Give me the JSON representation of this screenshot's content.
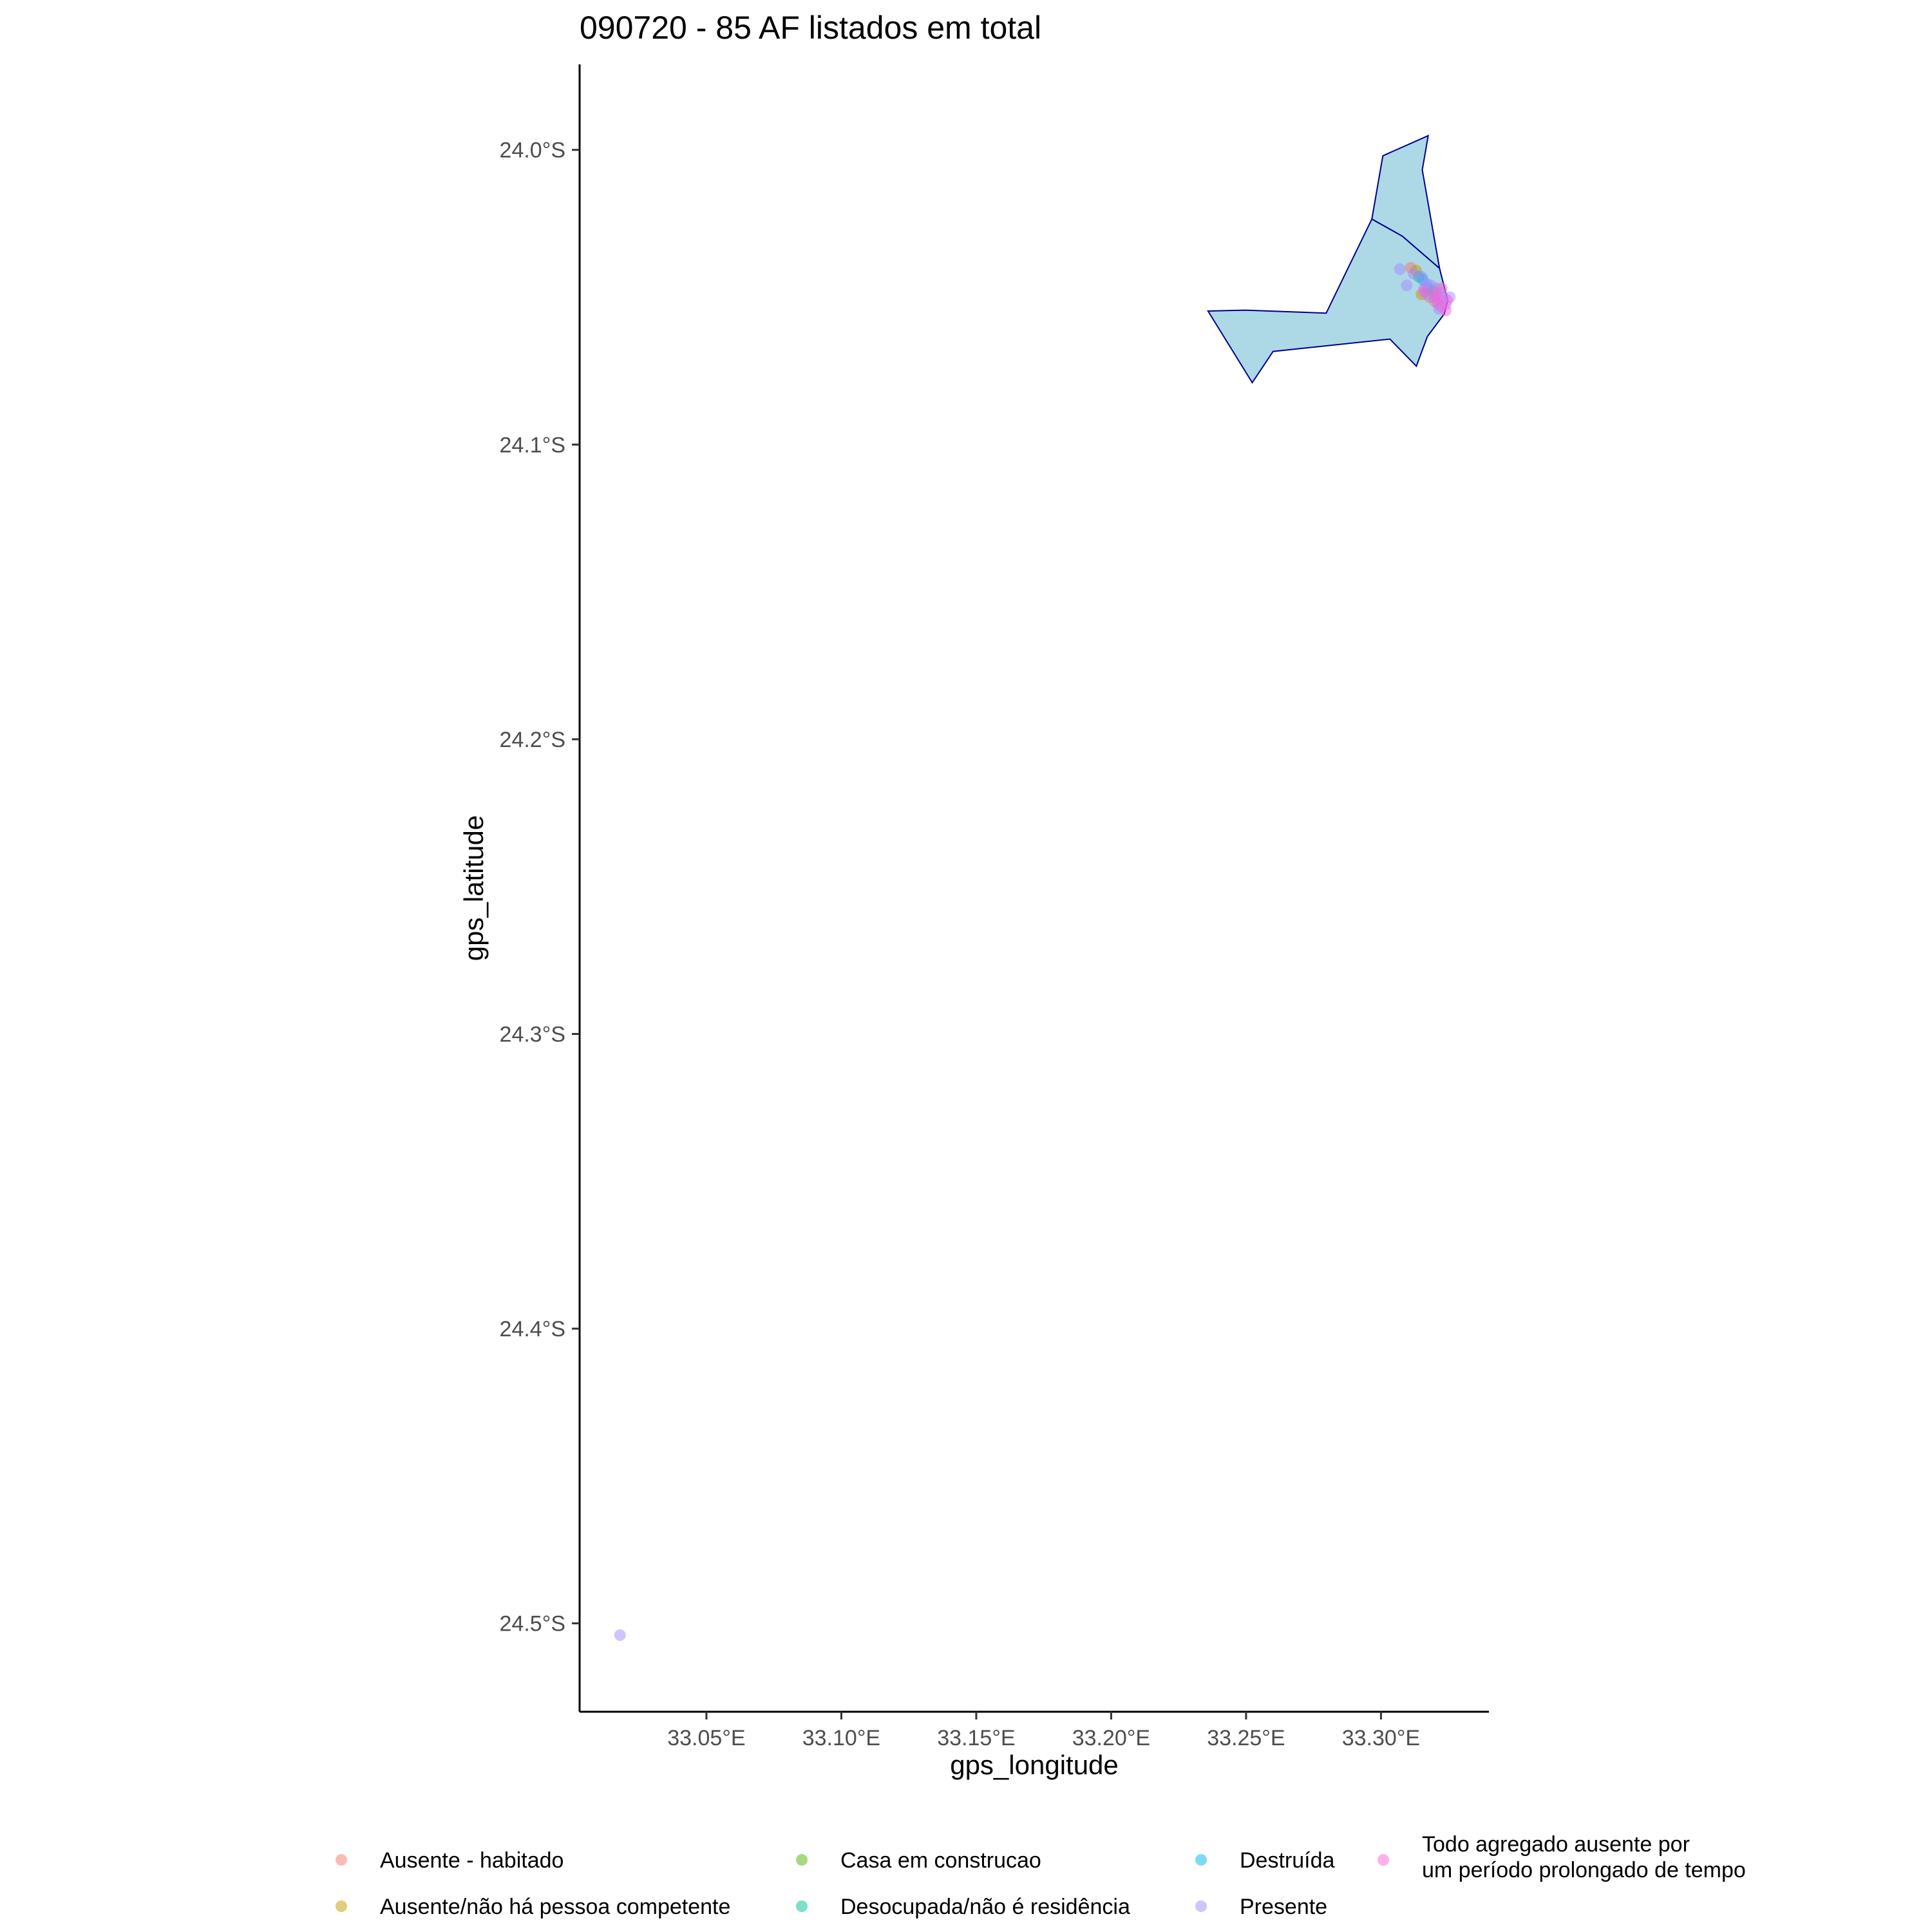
{
  "chart_data": {
    "type": "scatter",
    "title": "090720 - 85 AF listados em total",
    "xlabel": "gps_longitude",
    "ylabel": "gps_latitude",
    "xlim": [
      33.003,
      33.34
    ],
    "ylim": [
      -24.53,
      -23.971
    ],
    "x_ticks": [
      {
        "value": 33.05,
        "label": "33.05°E"
      },
      {
        "value": 33.1,
        "label": "33.10°E"
      },
      {
        "value": 33.15,
        "label": "33.15°E"
      },
      {
        "value": 33.2,
        "label": "33.20°E"
      },
      {
        "value": 33.25,
        "label": "33.25°E"
      },
      {
        "value": 33.3,
        "label": "33.30°E"
      }
    ],
    "y_ticks": [
      {
        "value": -24.0,
        "label": "24.0°S"
      },
      {
        "value": -24.1,
        "label": "24.1°S"
      },
      {
        "value": -24.2,
        "label": "24.2°S"
      },
      {
        "value": -24.3,
        "label": "24.3°S"
      },
      {
        "value": -24.4,
        "label": "24.4°S"
      },
      {
        "value": -24.5,
        "label": "24.5°S"
      }
    ],
    "grid": false,
    "legend_position": "bottom",
    "area": {
      "fill": "#add8e6",
      "stroke": "#00008b",
      "polygons": [
        [
          [
            33.2966,
            -24.0235
          ],
          [
            33.3007,
            -24.002
          ],
          [
            33.3175,
            -23.9952
          ],
          [
            33.3153,
            -24.0068
          ],
          [
            33.3217,
            -24.0402
          ],
          [
            33.3079,
            -24.0293
          ]
        ],
        [
          [
            33.2966,
            -24.0235
          ],
          [
            33.3079,
            -24.0293
          ],
          [
            33.3217,
            -24.0402
          ],
          [
            33.3247,
            -24.051
          ],
          [
            33.3235,
            -24.0556
          ],
          [
            33.3172,
            -24.0633
          ],
          [
            33.3131,
            -24.0734
          ],
          [
            33.3033,
            -24.0642
          ],
          [
            33.26,
            -24.0684
          ],
          [
            33.2523,
            -24.079
          ],
          [
            33.2359,
            -24.0547
          ],
          [
            33.2499,
            -24.0544
          ],
          [
            33.2797,
            -24.0554
          ]
        ]
      ]
    },
    "series": [
      {
        "name": "Ausente - habitado",
        "color": "#F8766D",
        "points": [
          [
            33.311,
            -24.04
          ],
          [
            33.318,
            -24.05
          ],
          [
            33.32,
            -24.0515
          ]
        ]
      },
      {
        "name": "Ausente/não há pessoa competente",
        "color": "#C49A00",
        "points": [
          [
            33.313,
            -24.041
          ],
          [
            33.315,
            -24.049
          ]
        ]
      },
      {
        "name": "Casa em construcao",
        "color": "#53B400",
        "points": [
          [
            33.319,
            -24.0478
          ]
        ]
      },
      {
        "name": "Desocupada/não é residência",
        "color": "#00C094",
        "points": [
          [
            33.314,
            -24.043
          ],
          [
            33.3175,
            -24.047
          ]
        ]
      },
      {
        "name": "Destruída",
        "color": "#00B6EB",
        "points": [
          [
            33.3155,
            -24.044
          ]
        ]
      },
      {
        "name": "Presente",
        "color": "#A58AFF",
        "points": [
          [
            33.018,
            -24.504
          ],
          [
            33.307,
            -24.0405
          ],
          [
            33.3095,
            -24.046
          ],
          [
            33.312,
            -24.042
          ],
          [
            33.315,
            -24.043
          ],
          [
            33.316,
            -24.047
          ],
          [
            33.317,
            -24.049
          ],
          [
            33.3185,
            -24.046
          ],
          [
            33.3195,
            -24.05
          ],
          [
            33.3205,
            -24.047
          ],
          [
            33.321,
            -24.052
          ],
          [
            33.322,
            -24.0485
          ],
          [
            33.323,
            -24.05
          ],
          [
            33.324,
            -24.0525
          ],
          [
            33.3255,
            -24.05
          ],
          [
            33.317,
            -24.0455
          ],
          [
            33.3215,
            -24.054
          ]
        ]
      },
      {
        "name": "Todo agregado ausente por um período prolongado de tempo",
        "color": "#FB61D7",
        "points": [
          [
            33.316,
            -24.048
          ],
          [
            33.32,
            -24.049
          ],
          [
            33.321,
            -24.0505
          ],
          [
            33.322,
            -24.053
          ],
          [
            33.324,
            -24.0545
          ],
          [
            33.3245,
            -24.051
          ],
          [
            33.3225,
            -24.047
          ]
        ]
      }
    ]
  },
  "legend": {
    "items": [
      {
        "label": "Ausente - habitado",
        "color": "#F8766D"
      },
      {
        "label": "Ausente/não há pessoa competente",
        "color": "#C49A00"
      },
      {
        "label": "Casa em construcao",
        "color": "#53B400"
      },
      {
        "label": "Desocupada/não é residência",
        "color": "#00C094"
      },
      {
        "label": "Destruída",
        "color": "#00B6EB"
      },
      {
        "label": "Presente",
        "color": "#A58AFF"
      },
      {
        "label_lines": [
          "Todo agregado ausente por",
          "um período prolongado de tempo"
        ],
        "color": "#FB61D7"
      }
    ]
  }
}
